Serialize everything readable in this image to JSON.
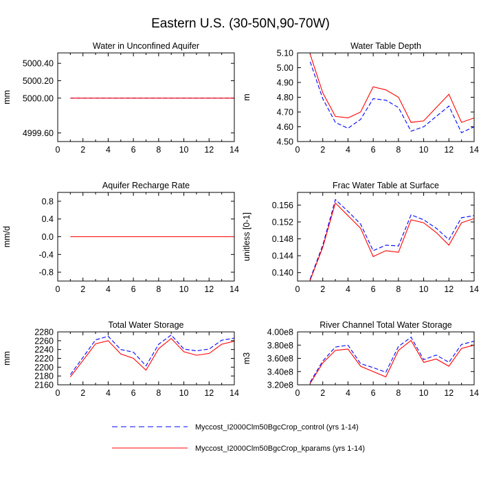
{
  "title": "Eastern U.S. (30-50N,90-70W)",
  "legend": [
    {
      "label": "Myccost_I2000Clm50BgcCrop_control (yrs 1-14)",
      "color": "#0000ff",
      "dash": true
    },
    {
      "label": "Myccost_I2000Clm50BgcCrop_kparams (yrs 1-14)",
      "color": "#ff0000",
      "dash": false
    }
  ],
  "chart_data": [
    {
      "type": "line",
      "title": "Water in Unconfined Aquifer",
      "ylabel": "mm",
      "xlim": [
        0,
        14
      ],
      "ylim": [
        4999.5,
        5000.52
      ],
      "xticks": [
        0,
        2,
        4,
        6,
        8,
        10,
        12,
        14
      ],
      "yticks": [
        4999.6,
        5000.0,
        5000.2,
        5000.4
      ],
      "ytick_labels": [
        "4999.60",
        "5000.00",
        "5000.20",
        "5000.40"
      ],
      "x": [
        1,
        2,
        3,
        4,
        5,
        6,
        7,
        8,
        9,
        10,
        11,
        12,
        13,
        14
      ],
      "series": [
        {
          "name": "control",
          "color": "#0000ff",
          "dash": true,
          "values": [
            5000,
            5000,
            5000,
            5000,
            5000,
            5000,
            5000,
            5000,
            5000,
            5000,
            5000,
            5000,
            5000,
            5000
          ]
        },
        {
          "name": "kparams",
          "color": "#ff0000",
          "dash": false,
          "values": [
            5000,
            5000,
            5000,
            5000,
            5000,
            5000,
            5000,
            5000,
            5000,
            5000,
            5000,
            5000,
            5000,
            5000
          ]
        }
      ]
    },
    {
      "type": "line",
      "title": "Water Table Depth",
      "ylabel": "m",
      "xlim": [
        0,
        14
      ],
      "ylim": [
        4.5,
        5.1
      ],
      "xticks": [
        0,
        2,
        4,
        6,
        8,
        10,
        12,
        14
      ],
      "yticks": [
        4.5,
        4.6,
        4.7,
        4.8,
        4.9,
        5.0,
        5.1
      ],
      "ytick_labels": [
        "4.50",
        "4.60",
        "4.70",
        "4.80",
        "4.90",
        "5.00",
        "5.10"
      ],
      "x": [
        1,
        2,
        3,
        4,
        5,
        6,
        7,
        8,
        9,
        10,
        11,
        12,
        13,
        14
      ],
      "series": [
        {
          "name": "control",
          "color": "#0000ff",
          "dash": true,
          "values": [
            5.04,
            4.79,
            4.63,
            4.59,
            4.65,
            4.79,
            4.78,
            4.73,
            4.57,
            4.6,
            4.67,
            4.74,
            4.56,
            4.6
          ]
        },
        {
          "name": "kparams",
          "color": "#ff0000",
          "dash": false,
          "values": [
            5.09,
            4.83,
            4.67,
            4.66,
            4.7,
            4.87,
            4.85,
            4.8,
            4.63,
            4.64,
            4.73,
            4.82,
            4.63,
            4.66
          ]
        }
      ]
    },
    {
      "type": "line",
      "title": "Aquifer Recharge Rate",
      "ylabel": "mm/d",
      "xlim": [
        0,
        14
      ],
      "ylim": [
        -1,
        1
      ],
      "xticks": [
        0,
        2,
        4,
        6,
        8,
        10,
        12,
        14
      ],
      "yticks": [
        -0.8,
        -0.4,
        0.0,
        0.4,
        0.8
      ],
      "ytick_labels": [
        "-0.8",
        "-0.4",
        "0.0",
        "0.4",
        "0.8"
      ],
      "x": [
        1,
        2,
        3,
        4,
        5,
        6,
        7,
        8,
        9,
        10,
        11,
        12,
        13,
        14
      ],
      "series": [
        {
          "name": "control",
          "color": "#0000ff",
          "dash": true,
          "values": [
            0,
            0,
            0,
            0,
            0,
            0,
            0,
            0,
            0,
            0,
            0,
            0,
            0,
            0
          ]
        },
        {
          "name": "kparams",
          "color": "#ff0000",
          "dash": false,
          "values": [
            0,
            0,
            0,
            0,
            0,
            0,
            0,
            0,
            0,
            0,
            0,
            0,
            0,
            0
          ]
        }
      ]
    },
    {
      "type": "line",
      "title": "Frac Water Table at Surface",
      "ylabel": "unitless [0-1]",
      "xlim": [
        0,
        14
      ],
      "ylim": [
        0.138,
        0.159
      ],
      "xticks": [
        0,
        2,
        4,
        6,
        8,
        10,
        12,
        14
      ],
      "yticks": [
        0.14,
        0.144,
        0.148,
        0.152,
        0.156
      ],
      "ytick_labels": [
        "0.140",
        "0.144",
        "0.148",
        "0.152",
        "0.156"
      ],
      "x": [
        1,
        2,
        3,
        4,
        5,
        6,
        7,
        8,
        9,
        10,
        11,
        12,
        13,
        14
      ],
      "series": [
        {
          "name": "control",
          "color": "#0000ff",
          "dash": true,
          "values": [
            0.1385,
            0.1465,
            0.1573,
            0.1545,
            0.1515,
            0.1452,
            0.1465,
            0.1463,
            0.1537,
            0.1525,
            0.1505,
            0.1478,
            0.153,
            0.1535
          ]
        },
        {
          "name": "kparams",
          "color": "#ff0000",
          "dash": false,
          "values": [
            0.1382,
            0.146,
            0.1565,
            0.1535,
            0.1505,
            0.1438,
            0.1452,
            0.1448,
            0.1525,
            0.1518,
            0.1495,
            0.1465,
            0.1518,
            0.1528
          ]
        }
      ]
    },
    {
      "type": "line",
      "title": "Total Water Storage",
      "ylabel": "mm",
      "xlim": [
        0,
        14
      ],
      "ylim": [
        2160,
        2280
      ],
      "xticks": [
        0,
        2,
        4,
        6,
        8,
        10,
        12,
        14
      ],
      "yticks": [
        2160,
        2180,
        2200,
        2220,
        2240,
        2260,
        2280
      ],
      "ytick_labels": [
        "2160",
        "2180",
        "2200",
        "2220",
        "2240",
        "2260",
        "2280"
      ],
      "x": [
        1,
        2,
        3,
        4,
        5,
        6,
        7,
        8,
        9,
        10,
        11,
        12,
        13,
        14
      ],
      "series": [
        {
          "name": "control",
          "color": "#0000ff",
          "dash": true,
          "values": [
            2183,
            2222,
            2262,
            2270,
            2240,
            2234,
            2203,
            2252,
            2273,
            2241,
            2237,
            2241,
            2261,
            2266
          ]
        },
        {
          "name": "kparams",
          "color": "#ff0000",
          "dash": false,
          "values": [
            2178,
            2215,
            2253,
            2260,
            2230,
            2220,
            2193,
            2242,
            2265,
            2235,
            2227,
            2231,
            2252,
            2259
          ]
        }
      ]
    },
    {
      "type": "line",
      "title": "River Channel Total Water Storage",
      "ylabel": "m3",
      "xlim": [
        0,
        14
      ],
      "ylim": [
        320000000,
        400000000
      ],
      "xticks": [
        0,
        2,
        4,
        6,
        8,
        10,
        12,
        14
      ],
      "yticks": [
        320000000,
        340000000,
        360000000,
        380000000,
        400000000
      ],
      "ytick_labels": [
        "3.20e8",
        "3.40e8",
        "3.60e8",
        "3.80e8",
        "4.00e8"
      ],
      "x": [
        1,
        2,
        3,
        4,
        5,
        6,
        7,
        8,
        9,
        10,
        11,
        12,
        13,
        14
      ],
      "series": [
        {
          "name": "control",
          "color": "#0000ff",
          "dash": true,
          "values": [
            324000000,
            356000000,
            377000000,
            380000000,
            352000000,
            346000000,
            339000000,
            378000000,
            392000000,
            358000000,
            365000000,
            354000000,
            381000000,
            386000000
          ]
        },
        {
          "name": "kparams",
          "color": "#ff0000",
          "dash": false,
          "values": [
            322000000,
            353000000,
            372000000,
            374000000,
            348000000,
            340000000,
            332000000,
            372000000,
            387000000,
            354000000,
            359000000,
            348000000,
            375000000,
            380000000
          ]
        }
      ]
    }
  ]
}
